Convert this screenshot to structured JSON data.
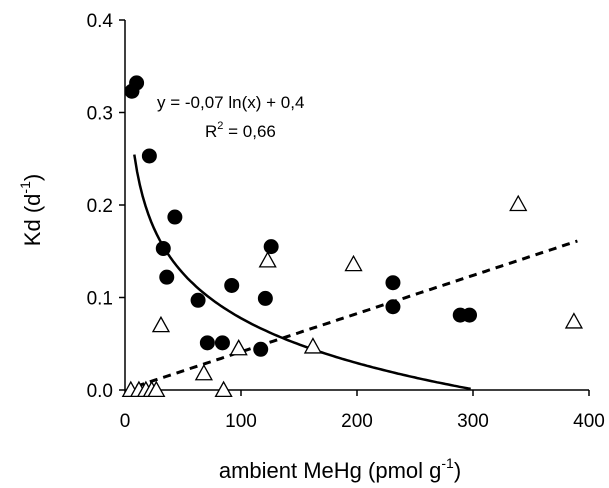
{
  "chart_data": {
    "type": "scatter",
    "title": "",
    "xlabel": "ambient MeHg (pmol g",
    "xlabel_sup": "-1",
    "xlabel_close": ")",
    "ylabel": "Kd (d",
    "ylabel_sup": "-1",
    "ylabel_close": ")",
    "xlim": [
      0,
      400
    ],
    "ylim": [
      0,
      0.4
    ],
    "x_ticks": [
      {
        "value": 0,
        "label": "0"
      },
      {
        "value": 100,
        "label": "100"
      },
      {
        "value": 200,
        "label": "200"
      },
      {
        "value": 300,
        "label": "300"
      },
      {
        "value": 400,
        "label": "400"
      }
    ],
    "y_ticks": [
      {
        "value": 0,
        "label": "0.0"
      },
      {
        "value": 0.1,
        "label": "0.1"
      },
      {
        "value": 0.2,
        "label": "0.2"
      },
      {
        "value": 0.3,
        "label": "0.3"
      },
      {
        "value": 0.4,
        "label": "0.4"
      }
    ],
    "grid": false,
    "legend": "none",
    "series": [
      {
        "marker": "filled-circle",
        "color": "#000000",
        "points": [
          {
            "x": 6,
            "y": 0.323
          },
          {
            "x": 10,
            "y": 0.332
          },
          {
            "x": 21,
            "y": 0.253
          },
          {
            "x": 33,
            "y": 0.153
          },
          {
            "x": 36,
            "y": 0.122
          },
          {
            "x": 43,
            "y": 0.187
          },
          {
            "x": 63,
            "y": 0.097
          },
          {
            "x": 71,
            "y": 0.051
          },
          {
            "x": 84,
            "y": 0.051
          },
          {
            "x": 92,
            "y": 0.113
          },
          {
            "x": 117,
            "y": 0.044
          },
          {
            "x": 121,
            "y": 0.099
          },
          {
            "x": 126,
            "y": 0.155
          },
          {
            "x": 231,
            "y": 0.116
          },
          {
            "x": 231,
            "y": 0.09
          },
          {
            "x": 289,
            "y": 0.081
          },
          {
            "x": 297,
            "y": 0.081
          }
        ]
      },
      {
        "marker": "open-triangle",
        "color": "#000000",
        "points": [
          {
            "x": 5,
            "y": 0.0
          },
          {
            "x": 12,
            "y": 0.0
          },
          {
            "x": 18,
            "y": 0.0
          },
          {
            "x": 23,
            "y": 0.0
          },
          {
            "x": 27,
            "y": 0.0
          },
          {
            "x": 31,
            "y": 0.07
          },
          {
            "x": 68,
            "y": 0.018
          },
          {
            "x": 85,
            "y": 0.0
          },
          {
            "x": 98,
            "y": 0.045
          },
          {
            "x": 123,
            "y": 0.14
          },
          {
            "x": 162,
            "y": 0.047
          },
          {
            "x": 197,
            "y": 0.136
          },
          {
            "x": 339,
            "y": 0.201
          },
          {
            "x": 387,
            "y": 0.074
          }
        ]
      }
    ],
    "fits": [
      {
        "type": "log",
        "style": "solid",
        "a": -0.07,
        "b": 0.4,
        "xrange": [
          8,
          298
        ]
      },
      {
        "type": "linear",
        "style": "dashed",
        "slope": 0.000413,
        "intercept": 0.0,
        "xrange": [
          10,
          390
        ]
      }
    ],
    "annotation": {
      "equation": "y = -0,07 ln(x) + 0,4",
      "r2_prefix": "R",
      "r2_sup": "2",
      "r2_value": " = 0,66"
    }
  }
}
